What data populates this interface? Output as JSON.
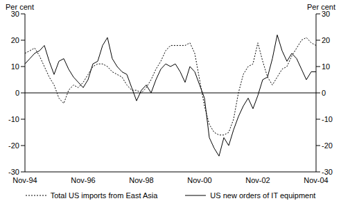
{
  "chart_data": {
    "type": "line",
    "y_label_left": "Per cent",
    "y_label_right": "Per cent",
    "categories": [
      "Nov-94",
      null,
      null,
      null,
      null,
      null,
      null,
      null,
      null,
      null,
      null,
      null,
      "Nov-96",
      null,
      null,
      null,
      null,
      null,
      null,
      null,
      null,
      null,
      null,
      null,
      "Nov-98",
      null,
      null,
      null,
      null,
      null,
      null,
      null,
      null,
      null,
      null,
      null,
      "Nov-00",
      null,
      null,
      null,
      null,
      null,
      null,
      null,
      null,
      null,
      null,
      null,
      "Nov-02",
      null,
      null,
      null,
      null,
      null,
      null,
      null,
      null,
      null,
      null,
      null,
      "Nov-04"
    ],
    "series": [
      {
        "name": "Total US imports from East Asia",
        "color": "#000000",
        "line_style": "dotted",
        "values": [
          15,
          16,
          17,
          14,
          10,
          6,
          3,
          -2,
          -4,
          1,
          3,
          2,
          4,
          7,
          10,
          11,
          11,
          10,
          8,
          7,
          6,
          3,
          1,
          1,
          0,
          2,
          5,
          9,
          12,
          16,
          18,
          18,
          18,
          18,
          19,
          15,
          5,
          -5,
          -12,
          -15,
          -16,
          -16,
          -15,
          -10,
          0,
          7,
          10,
          11,
          19,
          12,
          6,
          3,
          6,
          9,
          10,
          14,
          17,
          20,
          21,
          19,
          18
        ]
      },
      {
        "name": "US new orders of IT equipment",
        "color": "#000000",
        "line_style": "solid",
        "values": [
          11,
          13,
          15,
          16,
          18,
          12,
          7,
          12,
          13,
          9,
          6,
          4,
          2,
          5,
          11,
          12,
          18,
          21,
          13,
          10,
          8,
          7,
          2,
          -3,
          1,
          3,
          0,
          5,
          9,
          11,
          10,
          11,
          8,
          4,
          10,
          8,
          3,
          -2,
          -17,
          -21,
          -24,
          -17,
          -20,
          -14,
          -9,
          -5,
          -2,
          -6,
          -1,
          5,
          6,
          13,
          22,
          16,
          12,
          15,
          13,
          9,
          5,
          8,
          8
        ]
      }
    ],
    "ylim": [
      -30,
      30
    ],
    "yticks": [
      -30,
      -20,
      -10,
      0,
      10,
      20,
      30
    ],
    "legend": "bottom"
  }
}
